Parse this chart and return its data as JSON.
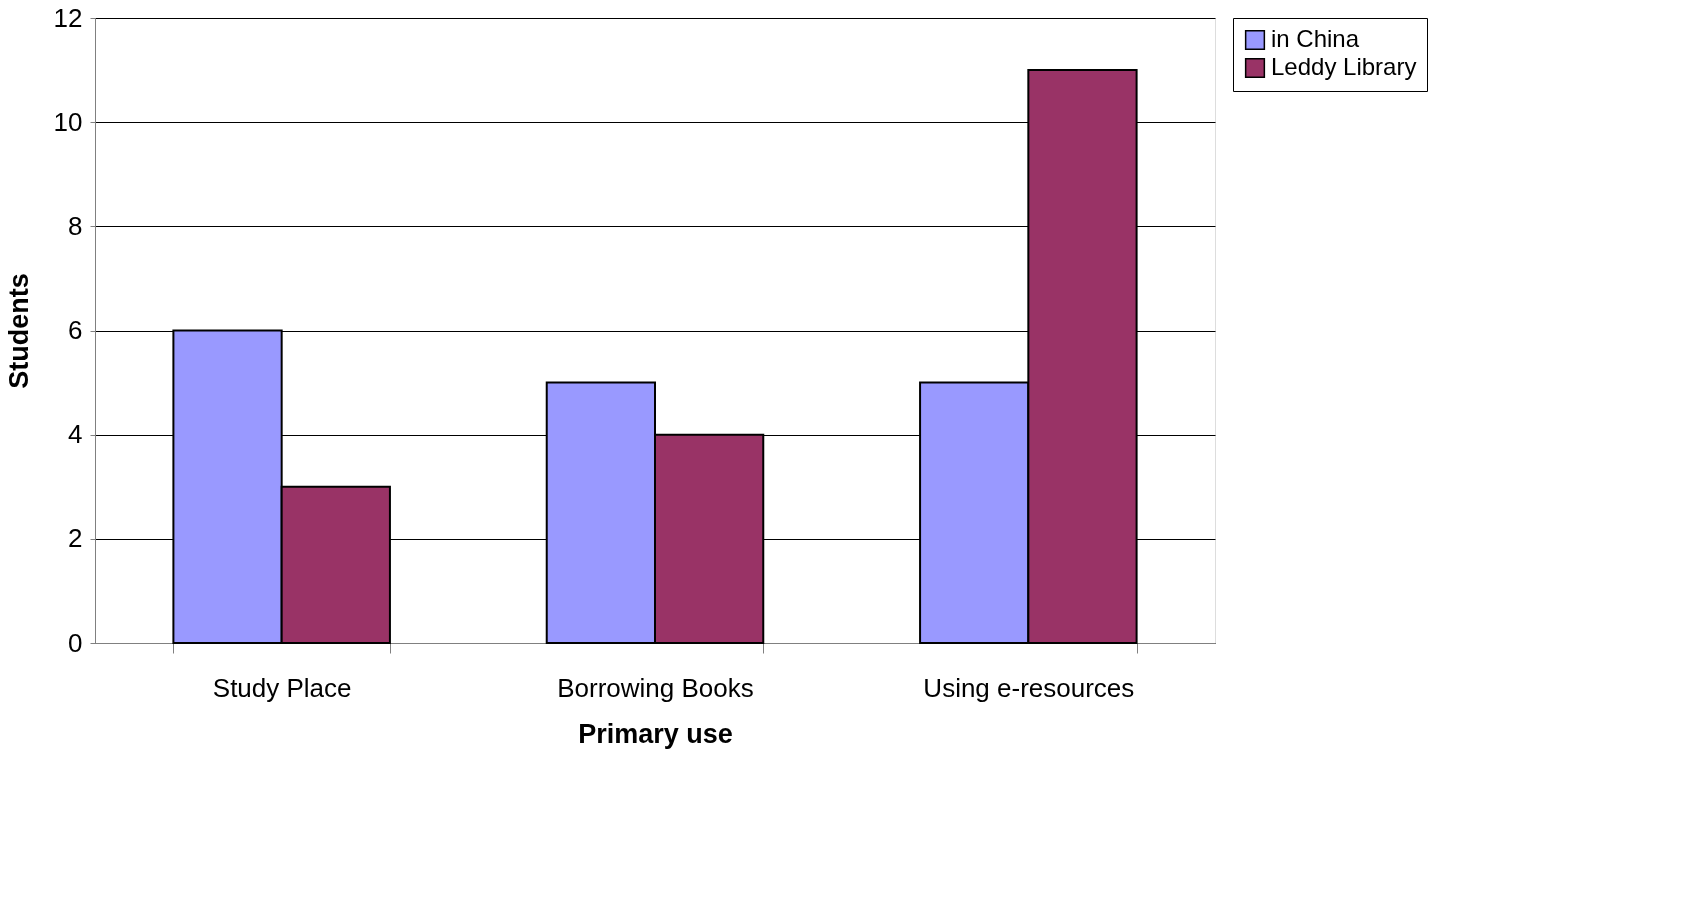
{
  "chart_data": {
    "type": "bar",
    "xlabel": "Primary use",
    "ylabel": "Students",
    "categories": [
      "Study Place",
      "Borrowing Books",
      "Using e-resources"
    ],
    "series": [
      {
        "name": "in China",
        "color": "#9999ff",
        "values": [
          6,
          5,
          5
        ]
      },
      {
        "name": "Leddy Library",
        "color": "#993366",
        "values": [
          3,
          4,
          11
        ]
      }
    ],
    "ylim": [
      0,
      12
    ],
    "yticks": [
      0,
      2,
      4,
      6,
      8,
      10,
      12
    ],
    "grid": "y",
    "legend": "right"
  }
}
